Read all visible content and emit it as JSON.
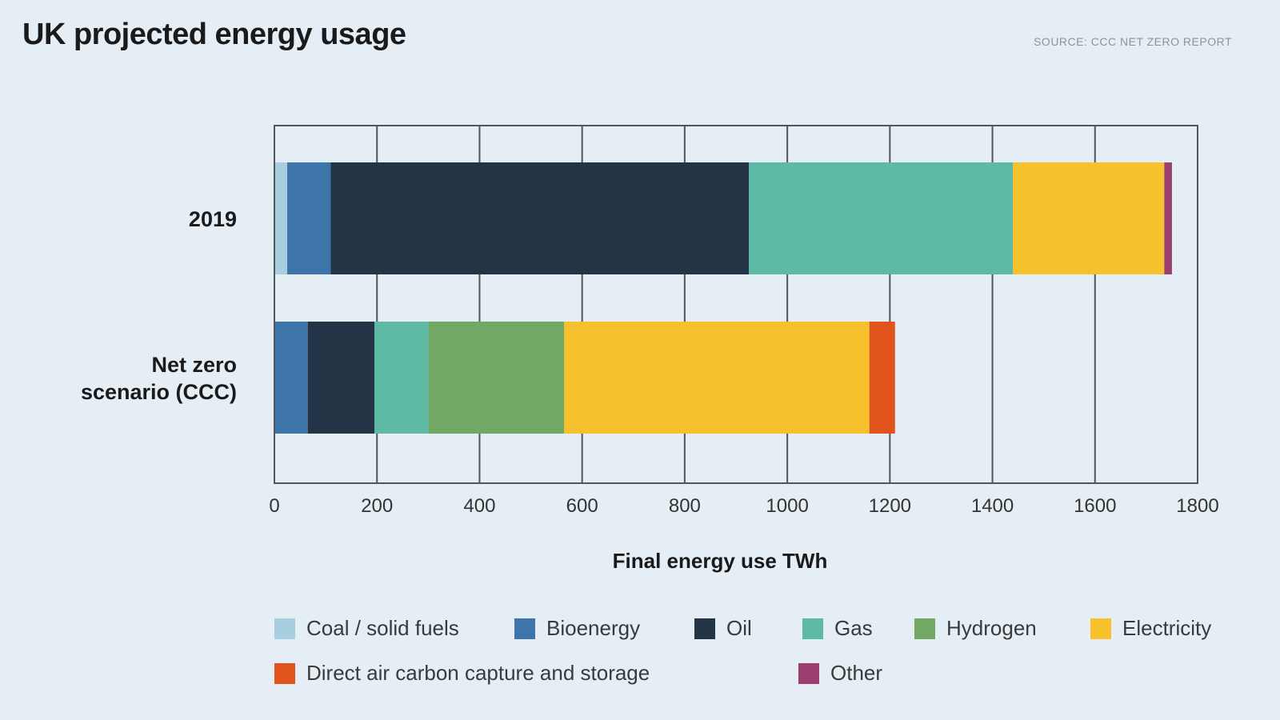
{
  "header": {
    "title": "UK projected energy usage",
    "source": "SOURCE: CCC NET ZERO REPORT"
  },
  "chart_data": {
    "type": "bar",
    "orientation": "horizontal",
    "stacked": true,
    "title": "UK projected energy usage",
    "xlabel": "Final energy use TWh",
    "ylabel": "",
    "xlim": [
      0,
      1800
    ],
    "xticks": [
      0,
      200,
      400,
      600,
      800,
      1000,
      1200,
      1400,
      1600,
      1800
    ],
    "grid": true,
    "categories": [
      "2019",
      "Net zero scenario (CCC)"
    ],
    "category_lines": [
      [
        "2019"
      ],
      [
        "Net zero",
        "scenario (CCC)"
      ]
    ],
    "series": [
      {
        "name": "Coal / solid fuels",
        "color": "#a8cfe0",
        "values": [
          25,
          0
        ]
      },
      {
        "name": "Bioenergy",
        "color": "#3d75aa",
        "values": [
          85,
          65
        ]
      },
      {
        "name": "Oil",
        "color": "#243447",
        "values": [
          815,
          130
        ]
      },
      {
        "name": "Gas",
        "color": "#5fbaa5",
        "values": [
          515,
          105
        ]
      },
      {
        "name": "Hydrogen",
        "color": "#71a866",
        "values": [
          0,
          265
        ]
      },
      {
        "name": "Electricity",
        "color": "#f6c12d",
        "values": [
          295,
          595
        ]
      },
      {
        "name": "Direct air carbon capture and storage",
        "color": "#e0531d",
        "values": [
          0,
          50
        ]
      },
      {
        "name": "Other",
        "color": "#9a3f6e",
        "values": [
          15,
          0
        ]
      }
    ],
    "legend_position": "bottom"
  }
}
